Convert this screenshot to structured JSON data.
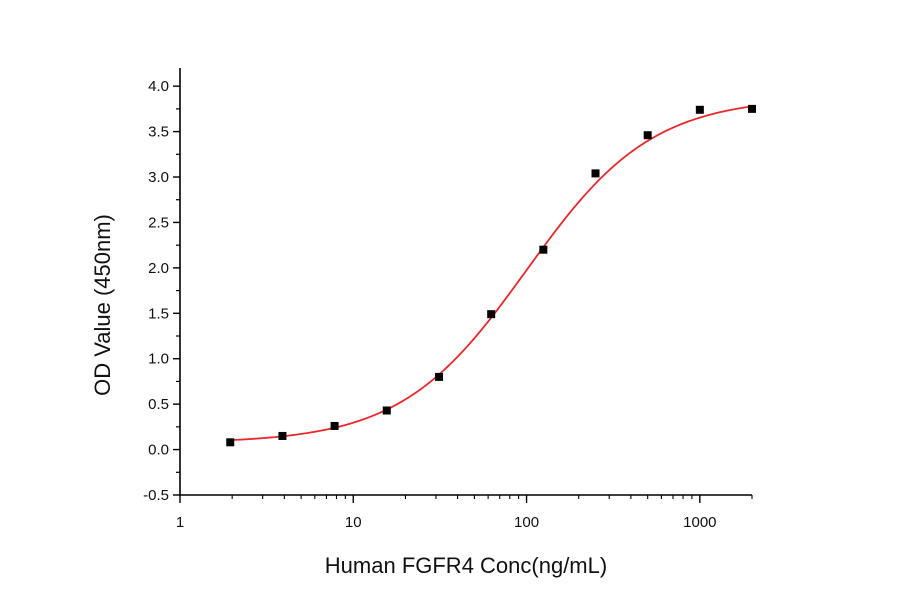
{
  "chart_data": {
    "type": "scatter",
    "title": "",
    "xlabel": "Human FGFR4 Conc(ng/mL)",
    "ylabel": "OD Value (450nm)",
    "x_scale": "log",
    "xlim": [
      1,
      2000
    ],
    "ylim": [
      -0.5,
      4.2
    ],
    "x_ticks": [
      1,
      10,
      100,
      1000
    ],
    "x_tick_labels": [
      "1",
      "10",
      "100",
      "1000"
    ],
    "y_ticks": [
      -0.5,
      0.0,
      0.5,
      1.0,
      1.5,
      2.0,
      2.5,
      3.0,
      3.5,
      4.0
    ],
    "y_tick_labels": [
      "-0.5",
      "0.0",
      "0.5",
      "1.0",
      "1.5",
      "2.0",
      "2.5",
      "3.0",
      "3.5",
      "4.0"
    ],
    "grid": false,
    "legend": "none",
    "series": [
      {
        "marker": "square",
        "color": "#000000",
        "x": [
          1.95,
          3.9,
          7.8,
          15.6,
          31.25,
          62.5,
          125,
          250,
          500,
          1000,
          2000
        ],
        "y": [
          0.08,
          0.15,
          0.26,
          0.43,
          0.8,
          1.49,
          2.2,
          3.04,
          3.46,
          3.74,
          3.75
        ]
      }
    ],
    "fit_curve": {
      "model": "4PL",
      "color": "#e8282b",
      "x_range": [
        1.95,
        2000
      ],
      "bottom": 0.07,
      "top": 3.88,
      "ec50": 100,
      "hill": 1.2
    }
  }
}
